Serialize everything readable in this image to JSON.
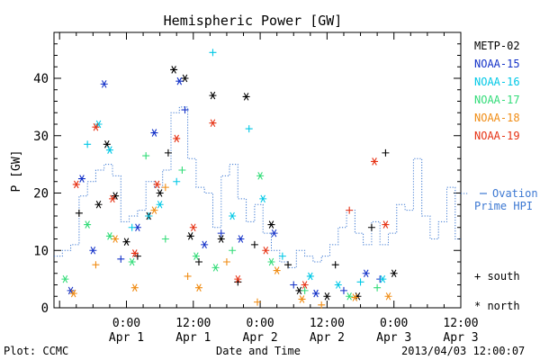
{
  "chart_data": {
    "type": "scatter",
    "title": "Hemispheric Power [GW]",
    "xlabel": "Date and Time",
    "ylabel": "P [GW]",
    "ylim": [
      0,
      48
    ],
    "xlim": [
      "2013-03-31T11:00",
      "2013-04-03T12:00"
    ],
    "x_ticks": [
      {
        "x": "2013-04-01T00:00",
        "time": "0:00",
        "date": "Apr 1"
      },
      {
        "x": "2013-04-01T12:00",
        "time": "12:00",
        "date": "Apr 1"
      },
      {
        "x": "2013-04-02T00:00",
        "time": "0:00",
        "date": "Apr 2"
      },
      {
        "x": "2013-04-02T12:00",
        "time": "12:00",
        "date": "Apr 2"
      },
      {
        "x": "2013-04-03T00:00",
        "time": "0:00",
        "date": "Apr 3"
      },
      {
        "x": "2013-04-03T12:00",
        "time": "12:00",
        "date": "Apr 3"
      }
    ],
    "y_ticks": [
      0,
      10,
      20,
      30,
      40
    ],
    "grid": false,
    "legend_position": "right",
    "series": [
      {
        "name": "METP-02",
        "color": "#000000",
        "points": [
          {
            "x": "2013-03-31T15:30",
            "y": 16.5,
            "m": "plus"
          },
          {
            "x": "2013-03-31T19:00",
            "y": 18.0,
            "m": "star"
          },
          {
            "x": "2013-03-31T20:30",
            "y": 28.5,
            "m": "star"
          },
          {
            "x": "2013-03-31T22:00",
            "y": 19.5,
            "m": "star"
          },
          {
            "x": "2013-04-01T00:00",
            "y": 11.5,
            "m": "star"
          },
          {
            "x": "2013-04-01T02:00",
            "y": 9.0,
            "m": "plus"
          },
          {
            "x": "2013-04-01T04:00",
            "y": 16.0,
            "m": "star"
          },
          {
            "x": "2013-04-01T06:00",
            "y": 20.0,
            "m": "star"
          },
          {
            "x": "2013-04-01T07:30",
            "y": 27.0,
            "m": "plus"
          },
          {
            "x": "2013-04-01T08:30",
            "y": 41.5,
            "m": "star"
          },
          {
            "x": "2013-04-01T10:30",
            "y": 40.0,
            "m": "star"
          },
          {
            "x": "2013-04-01T11:30",
            "y": 12.5,
            "m": "star"
          },
          {
            "x": "2013-04-01T13:00",
            "y": 8.0,
            "m": "plus"
          },
          {
            "x": "2013-04-01T15:30",
            "y": 37.0,
            "m": "star"
          },
          {
            "x": "2013-04-01T17:00",
            "y": 12.0,
            "m": "star"
          },
          {
            "x": "2013-04-01T20:00",
            "y": 4.5,
            "m": "plus"
          },
          {
            "x": "2013-04-01T21:30",
            "y": 36.8,
            "m": "star"
          },
          {
            "x": "2013-04-01T23:00",
            "y": 11.0,
            "m": "plus"
          },
          {
            "x": "2013-04-02T02:00",
            "y": 14.5,
            "m": "star"
          },
          {
            "x": "2013-04-02T05:00",
            "y": 7.5,
            "m": "plus"
          },
          {
            "x": "2013-04-02T07:00",
            "y": 3.0,
            "m": "star"
          },
          {
            "x": "2013-04-02T12:00",
            "y": 2.0,
            "m": "star"
          },
          {
            "x": "2013-04-02T13:30",
            "y": 7.5,
            "m": "plus"
          },
          {
            "x": "2013-04-02T17:30",
            "y": 2.0,
            "m": "star"
          },
          {
            "x": "2013-04-02T20:00",
            "y": 14.0,
            "m": "plus"
          },
          {
            "x": "2013-04-02T22:30",
            "y": 27.0,
            "m": "plus"
          },
          {
            "x": "2013-04-03T00:00",
            "y": 6.0,
            "m": "star"
          }
        ]
      },
      {
        "name": "NOAA-15",
        "color": "#1432c8",
        "points": [
          {
            "x": "2013-03-31T14:00",
            "y": 3.0,
            "m": "star"
          },
          {
            "x": "2013-03-31T16:00",
            "y": 22.5,
            "m": "star"
          },
          {
            "x": "2013-03-31T18:00",
            "y": 10.0,
            "m": "star"
          },
          {
            "x": "2013-03-31T20:00",
            "y": 39.0,
            "m": "star"
          },
          {
            "x": "2013-03-31T23:00",
            "y": 8.5,
            "m": "plus"
          },
          {
            "x": "2013-04-01T02:00",
            "y": 14.0,
            "m": "star"
          },
          {
            "x": "2013-04-01T05:00",
            "y": 30.5,
            "m": "star"
          },
          {
            "x": "2013-04-01T09:30",
            "y": 39.5,
            "m": "star"
          },
          {
            "x": "2013-04-01T10:30",
            "y": 34.5,
            "m": "plus"
          },
          {
            "x": "2013-04-01T14:00",
            "y": 11.0,
            "m": "star"
          },
          {
            "x": "2013-04-01T17:00",
            "y": 13.0,
            "m": "plus"
          },
          {
            "x": "2013-04-01T20:30",
            "y": 12.0,
            "m": "star"
          },
          {
            "x": "2013-04-02T02:30",
            "y": 13.0,
            "m": "star"
          },
          {
            "x": "2013-04-02T06:00",
            "y": 4.0,
            "m": "plus"
          },
          {
            "x": "2013-04-02T10:00",
            "y": 2.5,
            "m": "star"
          },
          {
            "x": "2013-04-02T15:00",
            "y": 3.0,
            "m": "plus"
          },
          {
            "x": "2013-04-02T19:00",
            "y": 6.0,
            "m": "star"
          },
          {
            "x": "2013-04-02T21:30",
            "y": 5.0,
            "m": "plus"
          }
        ]
      },
      {
        "name": "NOAA-16",
        "color": "#00c8e6",
        "points": [
          {
            "x": "2013-03-31T17:00",
            "y": 28.5,
            "m": "plus"
          },
          {
            "x": "2013-03-31T19:00",
            "y": 32.0,
            "m": "star"
          },
          {
            "x": "2013-03-31T21:00",
            "y": 27.5,
            "m": "star"
          },
          {
            "x": "2013-04-01T01:00",
            "y": 14.0,
            "m": "plus"
          },
          {
            "x": "2013-04-01T04:00",
            "y": 16.0,
            "m": "plus"
          },
          {
            "x": "2013-04-01T06:00",
            "y": 18.0,
            "m": "star"
          },
          {
            "x": "2013-04-01T09:00",
            "y": 22.0,
            "m": "plus"
          },
          {
            "x": "2013-04-01T15:30",
            "y": 44.5,
            "m": "plus"
          },
          {
            "x": "2013-04-01T19:00",
            "y": 16.0,
            "m": "star"
          },
          {
            "x": "2013-04-01T22:00",
            "y": 31.2,
            "m": "plus"
          },
          {
            "x": "2013-04-02T00:30",
            "y": 19.0,
            "m": "star"
          },
          {
            "x": "2013-04-02T04:00",
            "y": 9.0,
            "m": "plus"
          },
          {
            "x": "2013-04-02T09:00",
            "y": 5.5,
            "m": "star"
          },
          {
            "x": "2013-04-02T14:00",
            "y": 4.0,
            "m": "star"
          },
          {
            "x": "2013-04-02T18:00",
            "y": 4.5,
            "m": "plus"
          },
          {
            "x": "2013-04-02T22:00",
            "y": 5.0,
            "m": "star"
          }
        ]
      },
      {
        "name": "NOAA-17",
        "color": "#32dc78",
        "points": [
          {
            "x": "2013-03-31T13:00",
            "y": 5.0,
            "m": "star"
          },
          {
            "x": "2013-03-31T17:00",
            "y": 14.5,
            "m": "star"
          },
          {
            "x": "2013-03-31T21:00",
            "y": 12.5,
            "m": "star"
          },
          {
            "x": "2013-04-01T01:00",
            "y": 8.0,
            "m": "star"
          },
          {
            "x": "2013-04-01T03:30",
            "y": 26.5,
            "m": "plus"
          },
          {
            "x": "2013-04-01T07:00",
            "y": 12.0,
            "m": "plus"
          },
          {
            "x": "2013-04-01T10:00",
            "y": 24.0,
            "m": "plus"
          },
          {
            "x": "2013-04-01T12:30",
            "y": 9.0,
            "m": "star"
          },
          {
            "x": "2013-04-01T16:00",
            "y": 7.0,
            "m": "star"
          },
          {
            "x": "2013-04-01T19:00",
            "y": 10.0,
            "m": "plus"
          },
          {
            "x": "2013-04-02T00:00",
            "y": 23.0,
            "m": "star"
          },
          {
            "x": "2013-04-02T02:00",
            "y": 8.0,
            "m": "star"
          },
          {
            "x": "2013-04-02T08:00",
            "y": 3.0,
            "m": "plus"
          },
          {
            "x": "2013-04-02T16:00",
            "y": 2.0,
            "m": "star"
          },
          {
            "x": "2013-04-02T21:00",
            "y": 3.5,
            "m": "plus"
          }
        ]
      },
      {
        "name": "NOAA-18",
        "color": "#f08c14",
        "points": [
          {
            "x": "2013-03-31T14:30",
            "y": 2.5,
            "m": "star"
          },
          {
            "x": "2013-03-31T18:30",
            "y": 7.5,
            "m": "plus"
          },
          {
            "x": "2013-03-31T22:00",
            "y": 12.0,
            "m": "star"
          },
          {
            "x": "2013-04-01T01:30",
            "y": 3.5,
            "m": "star"
          },
          {
            "x": "2013-04-01T05:00",
            "y": 17.0,
            "m": "star"
          },
          {
            "x": "2013-04-01T07:00",
            "y": 21.0,
            "m": "plus"
          },
          {
            "x": "2013-04-01T11:00",
            "y": 5.5,
            "m": "plus"
          },
          {
            "x": "2013-04-01T13:00",
            "y": 3.5,
            "m": "star"
          },
          {
            "x": "2013-04-01T18:00",
            "y": 8.0,
            "m": "plus"
          },
          {
            "x": "2013-04-01T23:30",
            "y": 1.0,
            "m": "plus"
          },
          {
            "x": "2013-04-02T03:00",
            "y": 6.5,
            "m": "star"
          },
          {
            "x": "2013-04-02T07:30",
            "y": 1.5,
            "m": "star"
          },
          {
            "x": "2013-04-02T11:00",
            "y": 0.5,
            "m": "plus"
          },
          {
            "x": "2013-04-02T17:00",
            "y": 1.8,
            "m": "star"
          },
          {
            "x": "2013-04-02T23:00",
            "y": 2.0,
            "m": "star"
          }
        ]
      },
      {
        "name": "NOAA-19",
        "color": "#e63214",
        "points": [
          {
            "x": "2013-03-31T15:00",
            "y": 21.5,
            "m": "star"
          },
          {
            "x": "2013-03-31T18:30",
            "y": 31.5,
            "m": "star"
          },
          {
            "x": "2013-03-31T21:30",
            "y": 19.0,
            "m": "star"
          },
          {
            "x": "2013-04-01T01:30",
            "y": 9.5,
            "m": "star"
          },
          {
            "x": "2013-04-01T05:30",
            "y": 21.5,
            "m": "star"
          },
          {
            "x": "2013-04-01T09:00",
            "y": 29.5,
            "m": "star"
          },
          {
            "x": "2013-04-01T12:00",
            "y": 14.0,
            "m": "star"
          },
          {
            "x": "2013-04-01T15:30",
            "y": 32.2,
            "m": "star"
          },
          {
            "x": "2013-04-01T20:00",
            "y": 5.0,
            "m": "star"
          },
          {
            "x": "2013-04-02T01:00",
            "y": 10.0,
            "m": "star"
          },
          {
            "x": "2013-04-02T08:00",
            "y": 4.0,
            "m": "star"
          },
          {
            "x": "2013-04-02T16:00",
            "y": 17.0,
            "m": "plus"
          },
          {
            "x": "2013-04-02T20:30",
            "y": 25.5,
            "m": "star"
          },
          {
            "x": "2013-04-02T22:30",
            "y": 14.5,
            "m": "star"
          }
        ]
      }
    ],
    "ovation": {
      "name": "Ovation Prime HPI",
      "color": "#3c78d2",
      "style": "dotted-step",
      "legend_lines": [
        "Ovation",
        "Prime HPI"
      ],
      "x": [
        "2013-03-31T11:00",
        "2013-03-31T12:30",
        "2013-03-31T14:00",
        "2013-03-31T15:30",
        "2013-03-31T17:00",
        "2013-03-31T18:30",
        "2013-03-31T20:00",
        "2013-03-31T21:30",
        "2013-03-31T23:00",
        "2013-04-01T00:30",
        "2013-04-01T02:00",
        "2013-04-01T03:30",
        "2013-04-01T05:00",
        "2013-04-01T06:30",
        "2013-04-01T08:00",
        "2013-04-01T09:30",
        "2013-04-01T11:00",
        "2013-04-01T12:30",
        "2013-04-01T14:00",
        "2013-04-01T15:30",
        "2013-04-01T17:00",
        "2013-04-01T18:30",
        "2013-04-01T20:00",
        "2013-04-01T21:30",
        "2013-04-01T23:00",
        "2013-04-02T00:30",
        "2013-04-02T02:00",
        "2013-04-02T03:30",
        "2013-04-02T05:00",
        "2013-04-02T06:30",
        "2013-04-02T08:00",
        "2013-04-02T09:30",
        "2013-04-02T11:00",
        "2013-04-02T12:30",
        "2013-04-02T14:00",
        "2013-04-02T15:30",
        "2013-04-02T17:00",
        "2013-04-02T18:30",
        "2013-04-02T20:00",
        "2013-04-02T21:30",
        "2013-04-02T23:00",
        "2013-04-03T00:30",
        "2013-04-03T02:00",
        "2013-04-03T03:30",
        "2013-04-03T05:00",
        "2013-04-03T06:30",
        "2013-04-03T08:00",
        "2013-04-03T09:30",
        "2013-04-03T11:00"
      ],
      "y": [
        9,
        10,
        11,
        19.5,
        22,
        24,
        25,
        23,
        15,
        16,
        17,
        22,
        21,
        24,
        34,
        35,
        26,
        21,
        20,
        14,
        23,
        25,
        19,
        15,
        18,
        13,
        10,
        8,
        7,
        10,
        9,
        8,
        9,
        11,
        14,
        17,
        13,
        11,
        15,
        11,
        13,
        18,
        17,
        26,
        16,
        12,
        15,
        21,
        12
      ]
    },
    "legend_markers": {
      "south": "+ south",
      "north": "* north"
    },
    "footer": {
      "plot_credit": "Plot: CCMC",
      "timestamp": "2013/04/03 12:00:07"
    }
  }
}
